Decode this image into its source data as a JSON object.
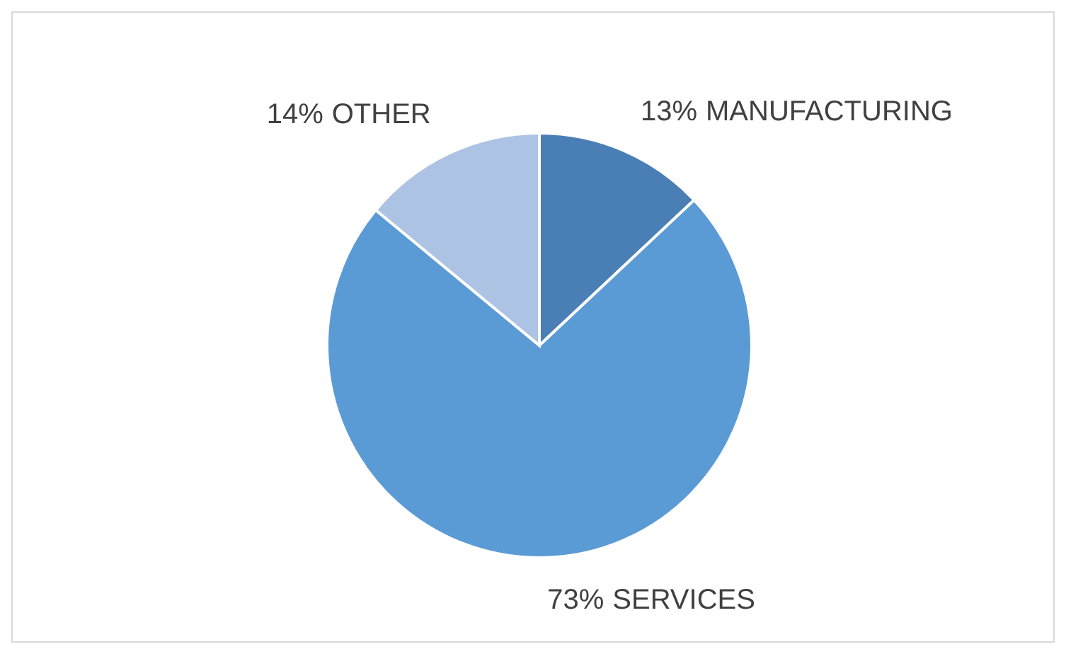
{
  "chart_data": {
    "type": "pie",
    "categories": [
      "MANUFACTURING",
      "SERVICES",
      "OTHER"
    ],
    "values": [
      13,
      73,
      14
    ],
    "colors": [
      "#4a7fb5",
      "#5b9bd5",
      "#adc3e4"
    ],
    "value_labels": [
      "13%",
      "73%",
      "14%"
    ],
    "legend": false
  }
}
